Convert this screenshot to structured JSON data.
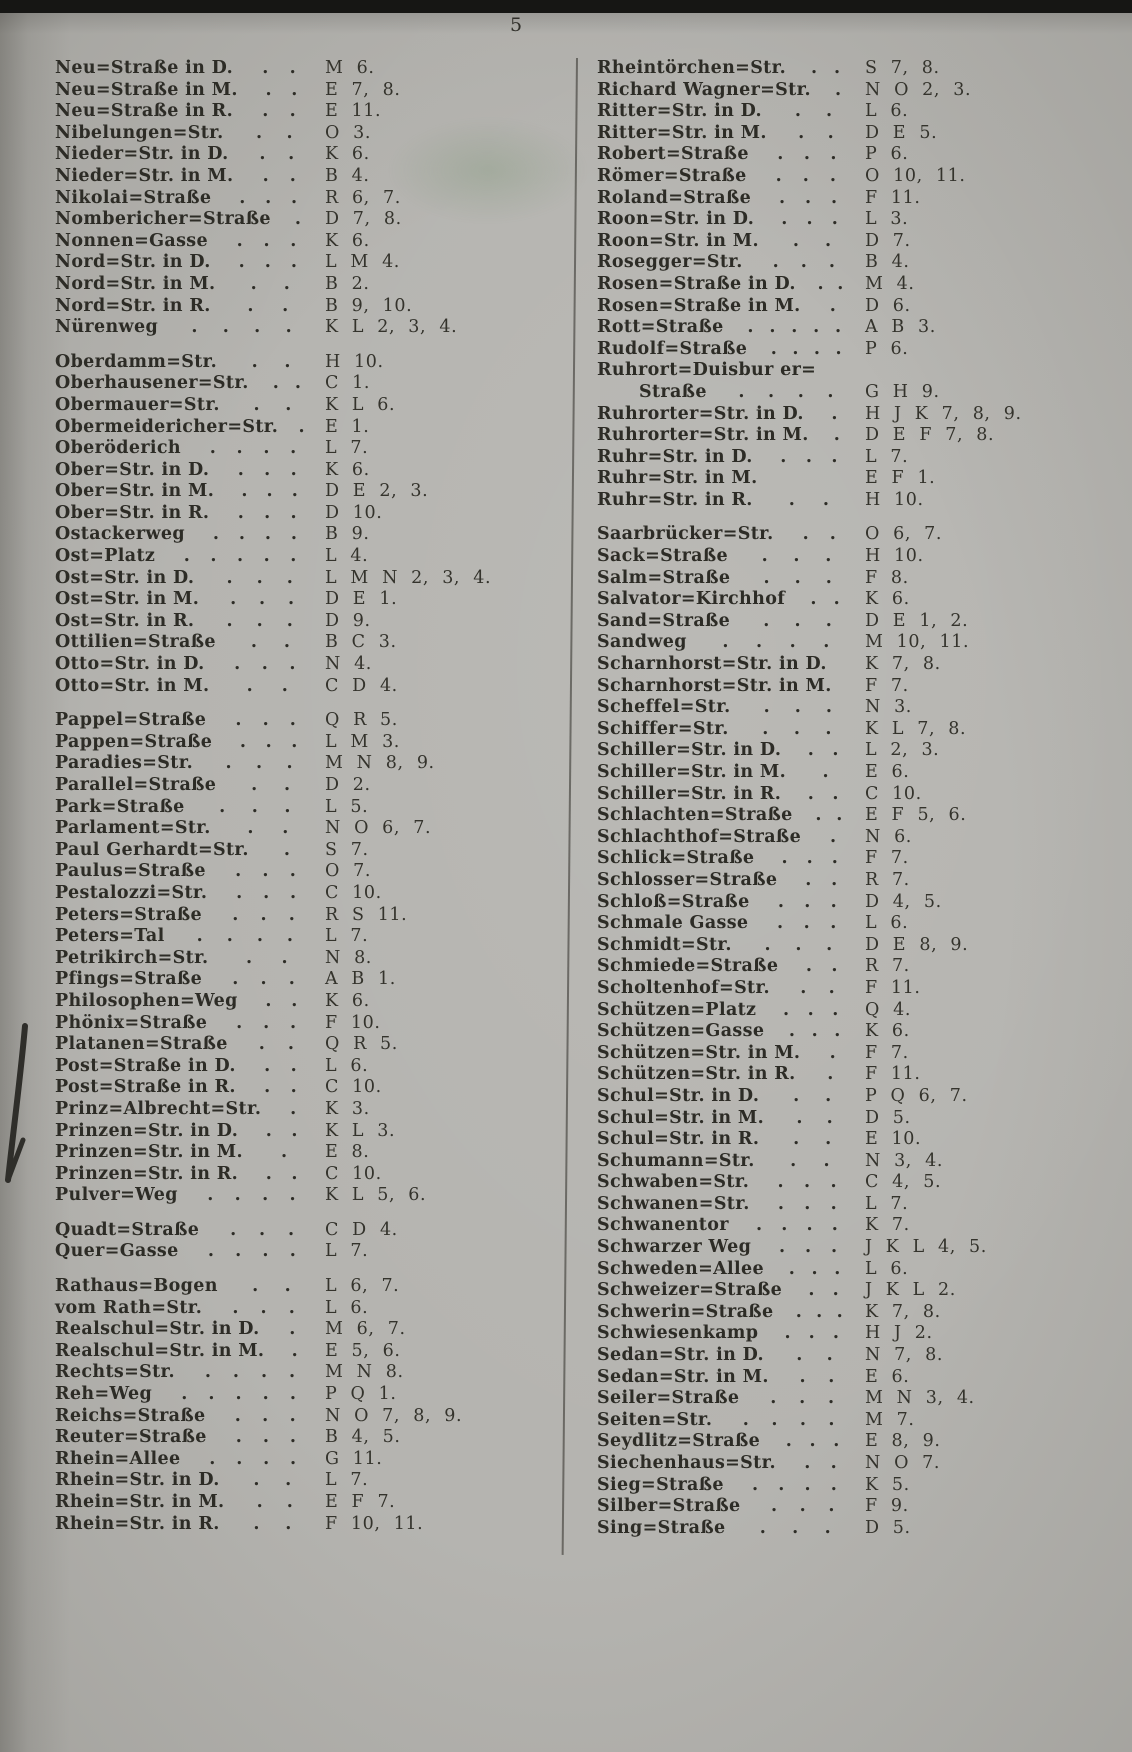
{
  "page": {
    "number": "5"
  },
  "palette": {
    "paper": "#b5b4b0",
    "ink": "#2d2c26",
    "coord_ink": "#34332c",
    "top_band": "#161614",
    "stain_green": "#7d9676"
  },
  "artifacts": {
    "top_band": "dark scan edge",
    "left_edge_mark": "dark angular binding mark",
    "green_stain": "faint greenish stamp bleed"
  },
  "index": {
    "left_column": [
      [
        {
          "name": "Neu=Straße in D.",
          "dots": ". .",
          "coord": "M 6."
        },
        {
          "name": "Neu=Straße in M.",
          "dots": ". .",
          "coord": "E 7, 8."
        },
        {
          "name": "Neu=Straße in R.",
          "dots": ". .",
          "coord": "E 11."
        },
        {
          "name": "Nibelungen=Str.",
          "dots": ". .",
          "coord": "O 3."
        },
        {
          "name": "Nieder=Str. in D.",
          "dots": ". .",
          "coord": "K 6."
        },
        {
          "name": "Nieder=Str. in M.",
          "dots": ". .",
          "coord": "B 4."
        },
        {
          "name": "Nikolai=Straße",
          "dots": ". . .",
          "coord": "R 6, 7."
        },
        {
          "name": "Nombericher=Straße",
          "dots": ".",
          "coord": "D 7, 8."
        },
        {
          "name": "Nonnen=Gasse",
          "dots": ". . .",
          "coord": "K 6."
        },
        {
          "name": "Nord=Str. in D.",
          "dots": ". . .",
          "coord": "L M 4."
        },
        {
          "name": "Nord=Str. in M.",
          "dots": ". .",
          "coord": "B 2."
        },
        {
          "name": "Nord=Str. in R.",
          "dots": ". .",
          "coord": "B 9, 10."
        },
        {
          "name": "Nürenweg",
          "dots": ". . . .",
          "coord": "K L 2, 3, 4."
        }
      ],
      [
        {
          "name": "Oberdamm=Str.",
          "dots": ". .",
          "coord": "H 10."
        },
        {
          "name": "Oberhausener=Str.",
          "dots": ". .",
          "coord": "C 1."
        },
        {
          "name": "Obermauer=Str.",
          "dots": ". .",
          "coord": "K L 6."
        },
        {
          "name": "Obermeidericher=Str.",
          "dots": ".",
          "coord": "E 1."
        },
        {
          "name": "Oberöderich",
          "dots": ". . . .",
          "coord": "L 7."
        },
        {
          "name": "Ober=Str. in D.",
          "dots": ". . .",
          "coord": "K 6."
        },
        {
          "name": "Ober=Str. in M.",
          "dots": ". . .",
          "coord": "D E 2, 3."
        },
        {
          "name": "Ober=Str. in R.",
          "dots": ". . .",
          "coord": "D 10."
        },
        {
          "name": "Ostackerweg",
          "dots": ". . . .",
          "coord": "B 9."
        },
        {
          "name": "Ost=Platz",
          "dots": ". . . . .",
          "coord": "L 4."
        },
        {
          "name": "Ost=Str. in D.",
          "dots": ". . .",
          "coord": "L M N 2, 3, 4."
        },
        {
          "name": "Ost=Str. in M.",
          "dots": ". . .",
          "coord": "D E 1."
        },
        {
          "name": "Ost=Str. in R.",
          "dots": ". . .",
          "coord": "D 9."
        },
        {
          "name": "Ottilien=Straße",
          "dots": ". .",
          "coord": "B C 3."
        },
        {
          "name": "Otto=Str. in D.",
          "dots": ". . .",
          "coord": "N 4."
        },
        {
          "name": "Otto=Str. in M.",
          "dots": ". .",
          "coord": "C D 4."
        }
      ],
      [
        {
          "name": "Pappel=Straße",
          "dots": ". . .",
          "coord": "Q R 5."
        },
        {
          "name": "Pappen=Straße",
          "dots": ". . .",
          "coord": "L M 3."
        },
        {
          "name": "Paradies=Str.",
          "dots": ". . .",
          "coord": "M N 8, 9."
        },
        {
          "name": "Parallel=Straße",
          "dots": ". .",
          "coord": "D 2."
        },
        {
          "name": "Park=Straße",
          "dots": ". . .",
          "coord": "L 5."
        },
        {
          "name": "Parlament=Str.",
          "dots": ". .",
          "coord": "N O 6, 7."
        },
        {
          "name": "Paul Gerhardt=Str.",
          "dots": ".",
          "coord": "S 7."
        },
        {
          "name": "Paulus=Straße",
          "dots": ". . .",
          "coord": "O 7."
        },
        {
          "name": "Pestalozzi=Str.",
          "dots": ". . .",
          "coord": "C 10."
        },
        {
          "name": "Peters=Straße",
          "dots": ". . .",
          "coord": "R S 11."
        },
        {
          "name": "Peters=Tal",
          "dots": ". . . .",
          "coord": "L 7."
        },
        {
          "name": "Petrikirch=Str.",
          "dots": ". .",
          "coord": "N 8."
        },
        {
          "name": "Pfings=Straße",
          "dots": ". . .",
          "coord": "A B 1."
        },
        {
          "name": "Philosophen=Weg",
          "dots": ". .",
          "coord": "K 6."
        },
        {
          "name": "Phönix=Straße",
          "dots": ". . .",
          "coord": "F 10."
        },
        {
          "name": "Platanen=Straße",
          "dots": ". .",
          "coord": "Q R 5."
        },
        {
          "name": "Post=Straße in D.",
          "dots": ". .",
          "coord": "L 6."
        },
        {
          "name": "Post=Straße in R.",
          "dots": ". .",
          "coord": "C 10."
        },
        {
          "name": "Prinz=Albrecht=Str.",
          "dots": ".",
          "coord": "K 3."
        },
        {
          "name": "Prinzen=Str. in D.",
          "dots": ". .",
          "coord": "K L 3."
        },
        {
          "name": "Prinzen=Str. in M.",
          "dots": ".",
          "coord": "E 8."
        },
        {
          "name": "Prinzen=Str. in R.",
          "dots": ". .",
          "coord": "C 10."
        },
        {
          "name": "Pulver=Weg",
          "dots": ". . . .",
          "coord": "K L 5, 6."
        }
      ],
      [
        {
          "name": "Quadt=Straße",
          "dots": ". . .",
          "coord": "C D 4."
        },
        {
          "name": "Quer=Gasse",
          "dots": ". . . .",
          "coord": "L 7."
        }
      ],
      [
        {
          "name": "Rathaus=Bogen",
          "dots": ". .",
          "coord": "L 6, 7."
        },
        {
          "name": "vom Rath=Str.",
          "dots": ". . .",
          "coord": "L 6."
        },
        {
          "name": "Realschul=Str. in D.",
          "dots": ".",
          "coord": "M 6, 7."
        },
        {
          "name": "Realschul=Str. in M.",
          "dots": ".",
          "coord": "E 5, 6."
        },
        {
          "name": "Rechts=Str.",
          "dots": ". . . .",
          "coord": "M N 8."
        },
        {
          "name": "Reh=Weg",
          "dots": ". . . . .",
          "coord": "P Q 1."
        },
        {
          "name": "Reichs=Straße",
          "dots": ". . .",
          "coord": "N O 7, 8, 9."
        },
        {
          "name": "Reuter=Straße",
          "dots": ". . .",
          "coord": "B 4, 5."
        },
        {
          "name": "Rhein=Allee",
          "dots": ". . . .",
          "coord": "G 11."
        },
        {
          "name": "Rhein=Str. in D.",
          "dots": ". .",
          "coord": "L 7."
        },
        {
          "name": "Rhein=Str. in M.",
          "dots": ". .",
          "coord": "E F 7."
        },
        {
          "name": "Rhein=Str. in R.",
          "dots": ". .",
          "coord": "F 10, 11."
        }
      ]
    ],
    "right_column": [
      [
        {
          "name": "Rheintörchen=Str.",
          "dots": ". .",
          "coord": "S 7, 8."
        },
        {
          "name": "Richard Wagner=Str.",
          "dots": ".",
          "coord": "N O 2, 3."
        },
        {
          "name": "Ritter=Str. in D.",
          "dots": ". .",
          "coord": "L 6."
        },
        {
          "name": "Ritter=Str. in M.",
          "dots": ". .",
          "coord": "D E 5."
        },
        {
          "name": "Robert=Straße",
          "dots": ". . .",
          "coord": "P 6."
        },
        {
          "name": "Römer=Straße",
          "dots": ". . .",
          "coord": "O 10, 11."
        },
        {
          "name": "Roland=Straße",
          "dots": ". . .",
          "coord": "F 11."
        },
        {
          "name": "Roon=Str. in D.",
          "dots": ". . .",
          "coord": "L 3."
        },
        {
          "name": "Roon=Str. in M.",
          "dots": ". .",
          "coord": "D 7."
        },
        {
          "name": "Rosegger=Str.",
          "dots": ". . .",
          "coord": "B 4."
        },
        {
          "name": "Rosen=Straße in D.",
          "dots": ". .",
          "coord": "M 4."
        },
        {
          "name": "Rosen=Straße in M.",
          "dots": ".",
          "coord": "D 6."
        },
        {
          "name": "Rott=Straße",
          "dots": ". . . . .",
          "coord": "A B 3."
        },
        {
          "name": "Rudolf=Straße",
          "dots": ". . . .",
          "coord": "P 6."
        },
        {
          "name": "Ruhrort=Duisbur er=",
          "dots": "",
          "coord": ""
        },
        {
          "name": "Straße",
          "indent": true,
          "dots": ". . . .",
          "coord": "G H 9."
        },
        {
          "name": "Ruhrorter=Str. in D.",
          "dots": ".",
          "coord": "H J K 7, 8, 9."
        },
        {
          "name": "Ruhrorter=Str. in M.",
          "dots": ".",
          "coord": "D E F 7, 8."
        },
        {
          "name": "Ruhr=Str. in D.",
          "dots": ". . .",
          "coord": "L 7."
        },
        {
          "name": "Ruhr=Str. in M.",
          "dots": "",
          "coord": "E F 1."
        },
        {
          "name": "Ruhr=Str. in R.",
          "dots": ". .",
          "coord": "H 10."
        }
      ],
      [
        {
          "name": "Saarbrücker=Str.",
          "dots": ". .",
          "coord": "O 6, 7."
        },
        {
          "name": "Sack=Straße",
          "dots": ". . .",
          "coord": "H 10."
        },
        {
          "name": "Salm=Straße",
          "dots": ". . .",
          "coord": "F 8."
        },
        {
          "name": "Salvator=Kirchhof",
          "dots": ". .",
          "coord": "K 6."
        },
        {
          "name": "Sand=Straße",
          "dots": ". . .",
          "coord": "D E 1, 2."
        },
        {
          "name": "Sandweg",
          "dots": ". . . .",
          "coord": "M 10, 11."
        },
        {
          "name": "Scharnhorst=Str. in D.",
          "dots": "",
          "coord": "K 7, 8."
        },
        {
          "name": "Scharnhorst=Str. in M.",
          "dots": "",
          "coord": "F 7."
        },
        {
          "name": "Scheffel=Str.",
          "dots": ". . .",
          "coord": "N 3."
        },
        {
          "name": "Schiffer=Str.",
          "dots": ". . .",
          "coord": "K L 7, 8."
        },
        {
          "name": "Schiller=Str. in D.",
          "dots": ". .",
          "coord": "L 2, 3."
        },
        {
          "name": "Schiller=Str. in M.",
          "dots": ".",
          "coord": "E 6."
        },
        {
          "name": "Schiller=Str. in R.",
          "dots": ". .",
          "coord": "C 10."
        },
        {
          "name": "Schlachten=Straße",
          "dots": ". .",
          "coord": "E F 5, 6."
        },
        {
          "name": "Schlachthof=Straße",
          "dots": ".",
          "coord": "N 6."
        },
        {
          "name": "Schlick=Straße",
          "dots": ". . .",
          "coord": "F 7."
        },
        {
          "name": "Schlosser=Straße",
          "dots": ". .",
          "coord": "R 7."
        },
        {
          "name": "Schloß=Straße",
          "dots": ". . .",
          "coord": "D 4, 5."
        },
        {
          "name": "Schmale Gasse",
          "dots": ". . .",
          "coord": "L 6."
        },
        {
          "name": "Schmidt=Str.",
          "dots": ". . .",
          "coord": "D E 8, 9."
        },
        {
          "name": "Schmiede=Straße",
          "dots": ". .",
          "coord": "R 7."
        },
        {
          "name": "Scholtenhof=Str.",
          "dots": ". .",
          "coord": "F 11."
        },
        {
          "name": "Schützen=Platz",
          "dots": ". . .",
          "coord": "Q 4."
        },
        {
          "name": "Schützen=Gasse",
          "dots": ". . .",
          "coord": "K 6."
        },
        {
          "name": "Schützen=Str. in M.",
          "dots": ".",
          "coord": "F 7."
        },
        {
          "name": "Schützen=Str. in R.",
          "dots": ".",
          "coord": "F 11."
        },
        {
          "name": "Schul=Str. in D.",
          "dots": ". .",
          "coord": "P Q 6, 7."
        },
        {
          "name": "Schul=Str. in M.",
          "dots": ". .",
          "coord": "D 5."
        },
        {
          "name": "Schul=Str. in R.",
          "dots": ". .",
          "coord": "E 10."
        },
        {
          "name": "Schumann=Str.",
          "dots": ". .",
          "coord": "N 3, 4."
        },
        {
          "name": "Schwaben=Str.",
          "dots": ". . .",
          "coord": "C 4, 5."
        },
        {
          "name": "Schwanen=Str.",
          "dots": ". . .",
          "coord": "L 7."
        },
        {
          "name": "Schwanentor",
          "dots": ". . . .",
          "coord": "K 7."
        },
        {
          "name": "Schwarzer Weg",
          "dots": ". . .",
          "coord": "J K L 4, 5."
        },
        {
          "name": "Schweden=Allee",
          "dots": ". . .",
          "coord": "L 6."
        },
        {
          "name": "Schweizer=Straße",
          "dots": ". .",
          "coord": "J K L 2."
        },
        {
          "name": "Schwerin=Straße",
          "dots": ". . .",
          "coord": "K 7, 8."
        },
        {
          "name": "Schwiesenkamp",
          "dots": ". . .",
          "coord": "H J 2."
        },
        {
          "name": "Sedan=Str. in D.",
          "dots": ". .",
          "coord": "N 7, 8."
        },
        {
          "name": "Sedan=Str. in M.",
          "dots": ". .",
          "coord": "E 6."
        },
        {
          "name": "Seiler=Straße",
          "dots": ". . .",
          "coord": "M N 3, 4."
        },
        {
          "name": "Seiten=Str.",
          "dots": ". . . .",
          "coord": "M 7."
        },
        {
          "name": "Seydlitz=Straße",
          "dots": ". . .",
          "coord": "E 8, 9."
        },
        {
          "name": "Siechenhaus=Str.",
          "dots": ". .",
          "coord": "N O 7."
        },
        {
          "name": "Sieg=Straße",
          "dots": ". . . .",
          "coord": "K 5."
        },
        {
          "name": "Silber=Straße",
          "dots": ". . .",
          "coord": "F 9."
        },
        {
          "name": "Sing=Straße",
          "dots": ". . .",
          "coord": "D 5."
        }
      ]
    ]
  }
}
